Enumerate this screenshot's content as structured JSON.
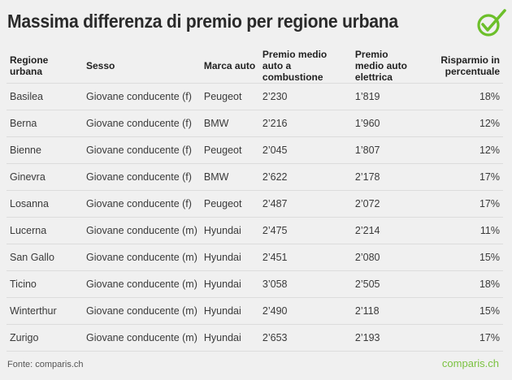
{
  "title": "Massima differenza di premio per regione urbana",
  "colors": {
    "accent_green": "#6cbf2a",
    "brand_green": "#7bc241",
    "background": "#f0f0f0",
    "divider": "#dcdcdc"
  },
  "logo": {
    "icon": "checkmark-circle-icon"
  },
  "table": {
    "headers": [
      "Regione urbana",
      "Sesso",
      "Marca auto",
      "Premio medio auto a combustione",
      "Premio medio auto elettrica",
      "Risparmio in percentuale"
    ],
    "rows": [
      [
        "Basilea",
        "Giovane conducente (f)",
        "Peugeot",
        "2’230",
        "1’819",
        "18%"
      ],
      [
        "Berna",
        "Giovane conducente (f)",
        "BMW",
        "2’216",
        "1’960",
        "12%"
      ],
      [
        "Bienne",
        "Giovane conducente (f)",
        "Peugeot",
        "2’045",
        "1’807",
        "12%"
      ],
      [
        "Ginevra",
        "Giovane conducente (f)",
        "BMW",
        "2’622",
        "2’178",
        "17%"
      ],
      [
        "Losanna",
        "Giovane conducente (f)",
        "Peugeot",
        "2’487",
        "2’072",
        "17%"
      ],
      [
        "Lucerna",
        "Giovane conducente (m)",
        "Hyundai",
        "2’475",
        "2’214",
        "11%"
      ],
      [
        "San Gallo",
        "Giovane conducente (m)",
        "Hyundai",
        "2’451",
        "2’080",
        "15%"
      ],
      [
        "Ticino",
        "Giovane conducente (m)",
        "Hyundai",
        "3’058",
        "2’505",
        "18%"
      ],
      [
        "Winterthur",
        "Giovane conducente (m)",
        "Hyundai",
        "2’490",
        "2’118",
        "15%"
      ],
      [
        "Zurigo",
        "Giovane conducente (m)",
        "Hyundai",
        "2’653",
        "2’193",
        "17%"
      ]
    ]
  },
  "footer": {
    "source": "Fonte: comparis.ch",
    "brand": "comparis.ch"
  },
  "chart_data": {
    "type": "table",
    "title": "Massima differenza di premio per regione urbana",
    "columns": [
      "Regione urbana",
      "Sesso",
      "Marca auto",
      "Premio medio auto a combustione",
      "Premio medio auto elettrica",
      "Risparmio in percentuale"
    ],
    "rows": [
      [
        "Basilea",
        "Giovane conducente (f)",
        "Peugeot",
        2230,
        1819,
        18
      ],
      [
        "Berna",
        "Giovane conducente (f)",
        "BMW",
        2216,
        1960,
        12
      ],
      [
        "Bienne",
        "Giovane conducente (f)",
        "Peugeot",
        2045,
        1807,
        12
      ],
      [
        "Ginevra",
        "Giovane conducente (f)",
        "BMW",
        2622,
        2178,
        17
      ],
      [
        "Losanna",
        "Giovane conducente (f)",
        "Peugeot",
        2487,
        2072,
        17
      ],
      [
        "Lucerna",
        "Giovane conducente (m)",
        "Hyundai",
        2475,
        2214,
        11
      ],
      [
        "San Gallo",
        "Giovane conducente (m)",
        "Hyundai",
        2451,
        2080,
        15
      ],
      [
        "Ticino",
        "Giovane conducente (m)",
        "Hyundai",
        3058,
        2505,
        18
      ],
      [
        "Winterthur",
        "Giovane conducente (m)",
        "Hyundai",
        2490,
        2118,
        15
      ],
      [
        "Zurigo",
        "Giovane conducente (m)",
        "Hyundai",
        2653,
        2193,
        17
      ]
    ],
    "source": "Fonte: comparis.ch"
  }
}
